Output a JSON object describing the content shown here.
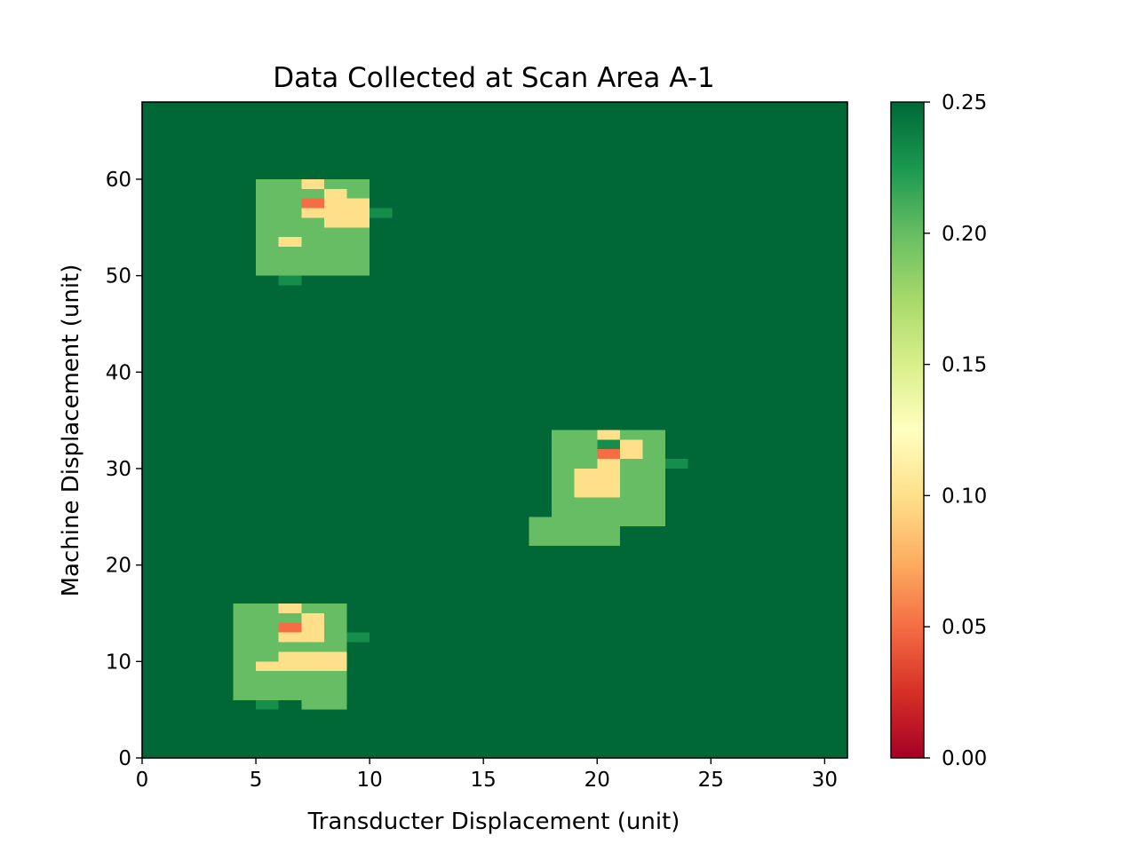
{
  "chart_data": {
    "type": "heatmap",
    "title": "Data Collected at Scan Area A-1",
    "xlabel": "Transducter Displacement (unit)",
    "ylabel": "Machine Displacement (unit)",
    "xlim": [
      0,
      31
    ],
    "ylim": [
      0,
      68
    ],
    "x_ticks": [
      0,
      5,
      10,
      15,
      20,
      25,
      30
    ],
    "y_ticks": [
      0,
      10,
      20,
      30,
      40,
      50,
      60
    ],
    "colormap": "RdYlGn",
    "colorbar": {
      "vmin": 0.0,
      "vmax": 0.25,
      "ticks": [
        "0.00",
        "0.05",
        "0.10",
        "0.15",
        "0.20",
        "0.25"
      ]
    },
    "background_value": 0.25,
    "cell_height": 1,
    "rects": [
      {
        "x": [
          4,
          9
        ],
        "y": [
          6,
          16
        ],
        "value": 0.2
      },
      {
        "x": [
          7,
          9
        ],
        "y": [
          5,
          6
        ],
        "value": 0.2
      },
      {
        "x": [
          5,
          6
        ],
        "y": [
          5,
          6
        ],
        "value": 0.23
      },
      {
        "x": [
          9,
          10
        ],
        "y": [
          12,
          13
        ],
        "value": 0.23
      },
      {
        "x": [
          5,
          9
        ],
        "y": [
          9,
          10
        ],
        "value": 0.1
      },
      {
        "x": [
          6,
          9
        ],
        "y": [
          10,
          11
        ],
        "value": 0.1
      },
      {
        "x": [
          6,
          7
        ],
        "y": [
          12,
          13
        ],
        "value": 0.1
      },
      {
        "x": [
          7,
          8
        ],
        "y": [
          12,
          15
        ],
        "value": 0.1
      },
      {
        "x": [
          6,
          7
        ],
        "y": [
          13,
          14
        ],
        "value": 0.05
      },
      {
        "x": [
          6,
          7
        ],
        "y": [
          15,
          16
        ],
        "value": 0.1
      },
      {
        "x": [
          5,
          10
        ],
        "y": [
          50,
          60
        ],
        "value": 0.2
      },
      {
        "x": [
          6,
          7
        ],
        "y": [
          49,
          50
        ],
        "value": 0.23
      },
      {
        "x": [
          10,
          11
        ],
        "y": [
          56,
          57
        ],
        "value": 0.23
      },
      {
        "x": [
          6,
          7
        ],
        "y": [
          53,
          54
        ],
        "value": 0.1
      },
      {
        "x": [
          8,
          10
        ],
        "y": [
          55,
          58
        ],
        "value": 0.1
      },
      {
        "x": [
          8,
          9
        ],
        "y": [
          58,
          59
        ],
        "value": 0.1
      },
      {
        "x": [
          7,
          8
        ],
        "y": [
          56,
          57
        ],
        "value": 0.1
      },
      {
        "x": [
          7,
          8
        ],
        "y": [
          57,
          58
        ],
        "value": 0.05
      },
      {
        "x": [
          7,
          8
        ],
        "y": [
          59,
          60
        ],
        "value": 0.1
      },
      {
        "x": [
          18,
          23
        ],
        "y": [
          24,
          34
        ],
        "value": 0.2
      },
      {
        "x": [
          17,
          21
        ],
        "y": [
          22,
          25
        ],
        "value": 0.2
      },
      {
        "x": [
          23,
          24
        ],
        "y": [
          30,
          31
        ],
        "value": 0.23
      },
      {
        "x": [
          20,
          21
        ],
        "y": [
          32,
          33
        ],
        "value": 0.23
      },
      {
        "x": [
          19,
          21
        ],
        "y": [
          27,
          30
        ],
        "value": 0.1
      },
      {
        "x": [
          20,
          21
        ],
        "y": [
          30,
          31
        ],
        "value": 0.1
      },
      {
        "x": [
          20,
          21
        ],
        "y": [
          31,
          32
        ],
        "value": 0.05
      },
      {
        "x": [
          21,
          22
        ],
        "y": [
          31,
          33
        ],
        "value": 0.1
      },
      {
        "x": [
          20,
          21
        ],
        "y": [
          33,
          34
        ],
        "value": 0.1
      }
    ]
  }
}
